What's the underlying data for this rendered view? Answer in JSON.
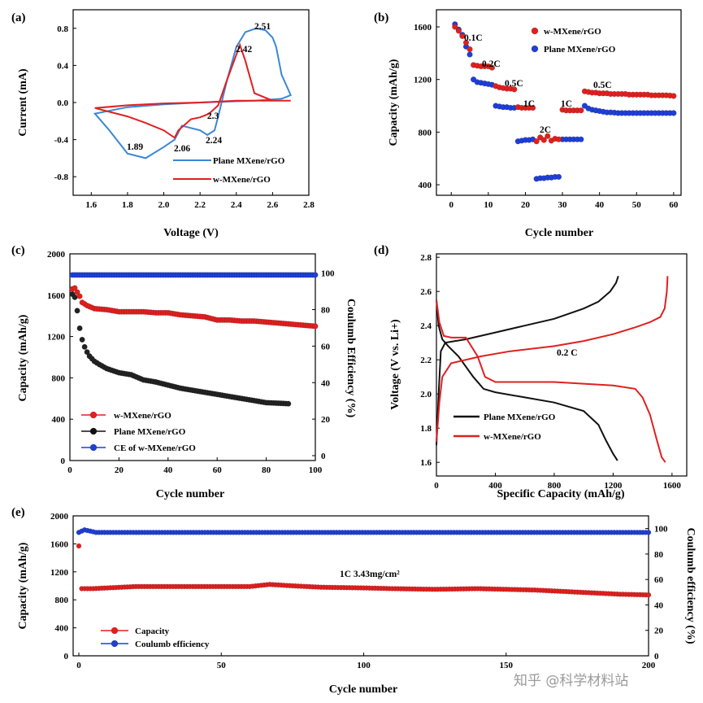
{
  "colors": {
    "red": "#e02020",
    "blue": "#1f3fd6",
    "lineblue": "#3a86d8",
    "black": "#111111"
  },
  "watermark": "知乎 @科学材料站",
  "chart_data": [
    {
      "panel": "(a)",
      "type": "line",
      "xlabel": "Voltage (V)",
      "ylabel": "Current (mA)",
      "xlim": [
        1.5,
        2.8
      ],
      "ylim": [
        -1.0,
        1.0
      ],
      "xticks": [
        "1.6",
        "1.8",
        "2.0",
        "2.2",
        "2.4",
        "2.6",
        "2.8"
      ],
      "yticks": [
        "-0.8",
        "-0.4",
        "0.0",
        "0.4",
        "0.8"
      ],
      "series": [
        {
          "name": "Plane MXene/rGO",
          "color": "#3a86d8",
          "x": [
            1.62,
            1.7,
            1.8,
            1.9,
            2.0,
            2.06,
            2.1,
            2.2,
            2.24,
            2.28,
            2.3,
            2.35,
            2.4,
            2.45,
            2.51,
            2.56,
            2.6,
            2.62,
            2.65,
            2.7,
            2.65,
            2.5,
            2.35,
            2.2,
            2.0,
            1.8,
            1.62
          ],
          "y": [
            -0.12,
            -0.3,
            -0.55,
            -0.6,
            -0.48,
            -0.4,
            -0.25,
            -0.3,
            -0.35,
            -0.3,
            -0.15,
            0.25,
            0.6,
            0.76,
            0.8,
            0.78,
            0.7,
            0.6,
            0.3,
            0.08,
            0.04,
            0.02,
            0.01,
            0.0,
            -0.02,
            -0.05,
            -0.12
          ]
        },
        {
          "name": "w-MXene/rGO",
          "color": "#e02020",
          "x": [
            1.62,
            1.8,
            1.9,
            2.0,
            2.06,
            2.08,
            2.15,
            2.2,
            2.25,
            2.3,
            2.35,
            2.42,
            2.45,
            2.5,
            2.6,
            2.7,
            2.6,
            2.4,
            2.2,
            2.0,
            1.8,
            1.62
          ],
          "y": [
            -0.06,
            -0.15,
            -0.22,
            -0.3,
            -0.38,
            -0.3,
            -0.18,
            -0.16,
            -0.12,
            -0.03,
            0.25,
            0.62,
            0.45,
            0.1,
            0.02,
            0.02,
            0.02,
            0.02,
            0.0,
            -0.01,
            -0.03,
            -0.06
          ]
        }
      ],
      "annotations": [
        "2.51",
        "2.42",
        "2.3",
        "1.89",
        "2.06",
        "2.24"
      ]
    },
    {
      "panel": "(b)",
      "type": "scatter",
      "xlabel": "Cycle number",
      "ylabel": "Capacity (mAh/g)",
      "xlim": [
        -4,
        62
      ],
      "ylim": [
        320,
        1730
      ],
      "xticks": [
        "0",
        "10",
        "20",
        "30",
        "40",
        "50",
        "60"
      ],
      "yticks": [
        "400",
        "800",
        "1200",
        "1600"
      ],
      "legend": [
        "w-MXene/rGO",
        "Plane MXene/rGO"
      ],
      "rates": [
        "0.1C",
        "0.2C",
        "0.5C",
        "1C",
        "2C",
        "1C",
        "0.5C"
      ],
      "red": [
        1600,
        1570,
        1530,
        1480,
        1430,
        1310,
        1305,
        1300,
        1300,
        1300,
        1290,
        1150,
        1140,
        1135,
        1130,
        1130,
        1125,
        990,
        985,
        985,
        985,
        985,
        730,
        760,
        740,
        770,
        735,
        750,
        745,
        970,
        965,
        965,
        965,
        965,
        965,
        1110,
        1105,
        1100,
        1100,
        1095,
        1095,
        1095,
        1090,
        1090,
        1090,
        1090,
        1090,
        1085,
        1085,
        1085,
        1085,
        1085,
        1085,
        1080,
        1080,
        1080,
        1080,
        1080,
        1078,
        1075
      ],
      "blue": [
        1620,
        1580,
        1540,
        1450,
        1390,
        1200,
        1180,
        1175,
        1170,
        1165,
        1160,
        1000,
        995,
        990,
        990,
        985,
        985,
        730,
        735,
        740,
        740,
        745,
        445,
        450,
        450,
        455,
        455,
        460,
        460,
        745,
        745,
        745,
        745,
        745,
        745,
        1000,
        980,
        970,
        965,
        960,
        955,
        950,
        950,
        948,
        945,
        945,
        945,
        945,
        945,
        945,
        945,
        945,
        945,
        945,
        945,
        945,
        945,
        945,
        945,
        945
      ]
    },
    {
      "panel": "(c)",
      "type": "scatter",
      "xlabel": "Cycle number",
      "ylabel": "Capacity (mAh/g)",
      "y2label": "Coulumb Efficiency (%)",
      "xlim": [
        0,
        100
      ],
      "ylim": [
        0,
        2000
      ],
      "y2lim": [
        0,
        115
      ],
      "xticks": [
        "0",
        "20",
        "40",
        "60",
        "80",
        "100"
      ],
      "yticks": [
        "0",
        "400",
        "800",
        "1200",
        "1600",
        "2000"
      ],
      "y2ticks": [
        "0",
        "20",
        "40",
        "60",
        "80",
        "100"
      ],
      "legend": [
        "w-MXene/rGO",
        "Plane MXene/rGO",
        "CE of w-MXene/rGO"
      ],
      "red_cap": {
        "x": [
          1,
          2,
          3,
          4,
          5,
          7,
          10,
          15,
          20,
          25,
          30,
          35,
          40,
          45,
          50,
          55,
          60,
          65,
          70,
          75,
          80,
          85,
          90,
          95,
          100
        ],
        "y": [
          1660,
          1670,
          1630,
          1590,
          1530,
          1500,
          1470,
          1460,
          1440,
          1440,
          1440,
          1430,
          1430,
          1410,
          1400,
          1390,
          1360,
          1360,
          1350,
          1350,
          1340,
          1330,
          1320,
          1310,
          1300
        ]
      },
      "black_cap": {
        "x": [
          1,
          2,
          3,
          4,
          5,
          6,
          7,
          8,
          10,
          12,
          15,
          20,
          25,
          30,
          35,
          40,
          45,
          50,
          55,
          60,
          65,
          70,
          75,
          80,
          85,
          89
        ],
        "y": [
          1610,
          1580,
          1450,
          1280,
          1170,
          1100,
          1050,
          1010,
          960,
          930,
          890,
          850,
          830,
          780,
          760,
          730,
          700,
          680,
          660,
          640,
          620,
          600,
          580,
          560,
          555,
          550
        ]
      },
      "ce": {
        "x": [
          1,
          10,
          20,
          30,
          40,
          50,
          60,
          70,
          80,
          90,
          100
        ],
        "y": [
          99,
          99,
          99,
          99,
          99,
          99,
          99,
          99,
          99,
          99,
          99
        ]
      }
    },
    {
      "panel": "(d)",
      "type": "line",
      "xlabel": "Specific Capacity (mAh/g)",
      "ylabel": "Voltage (V vs. Li+)",
      "xlim": [
        0,
        1700
      ],
      "ylim": [
        1.52,
        2.82
      ],
      "xticks": [
        "0",
        "400",
        "800",
        "1200",
        "1600"
      ],
      "yticks": [
        "1.6",
        "1.8",
        "2.0",
        "2.2",
        "2.4",
        "2.6",
        "2.8"
      ],
      "annotation": "0.2 C",
      "series": [
        {
          "name": "Plane MXene/rGO",
          "color": "#111111",
          "discharge": {
            "x": [
              0,
              15,
              40,
              80,
              150,
              250,
              320,
              400,
              600,
              800,
              1000,
              1100,
              1150,
              1200,
              1230
            ],
            "y": [
              2.55,
              2.4,
              2.32,
              2.28,
              2.22,
              2.1,
              2.03,
              2.01,
              1.98,
              1.95,
              1.9,
              1.82,
              1.73,
              1.65,
              1.61
            ]
          },
          "charge": {
            "x": [
              0,
              15,
              30,
              60,
              200,
              400,
              600,
              800,
              1000,
              1100,
              1180,
              1220,
              1235
            ],
            "y": [
              1.7,
              2.0,
              2.25,
              2.3,
              2.32,
              2.36,
              2.4,
              2.44,
              2.5,
              2.54,
              2.6,
              2.65,
              2.69
            ]
          }
        },
        {
          "name": "w-MXene/rGO",
          "color": "#e02020",
          "discharge": {
            "x": [
              0,
              20,
              50,
              100,
              200,
              280,
              330,
              400,
              600,
              800,
              1000,
              1200,
              1350,
              1400,
              1450,
              1500,
              1530,
              1555
            ],
            "y": [
              2.55,
              2.42,
              2.34,
              2.33,
              2.33,
              2.22,
              2.1,
              2.07,
              2.07,
              2.07,
              2.06,
              2.05,
              2.03,
              1.98,
              1.88,
              1.72,
              1.63,
              1.6
            ]
          },
          "charge": {
            "x": [
              0,
              20,
              40,
              100,
              300,
              500,
              800,
              1000,
              1200,
              1350,
              1450,
              1520,
              1550,
              1565,
              1570
            ],
            "y": [
              1.72,
              1.95,
              2.1,
              2.18,
              2.22,
              2.25,
              2.28,
              2.31,
              2.35,
              2.39,
              2.42,
              2.45,
              2.5,
              2.6,
              2.69
            ]
          }
        }
      ]
    },
    {
      "panel": "(e)",
      "type": "scatter",
      "xlabel": "Cycle number",
      "ylabel": "Capacity (mAh/g)",
      "y2label": "Coulumb efficiency (%)",
      "xlim": [
        0,
        200
      ],
      "ylim": [
        0,
        2000
      ],
      "y2lim": [
        0,
        110
      ],
      "xticks": [
        "0",
        "50",
        "100",
        "150",
        "200"
      ],
      "yticks": [
        "0",
        "400",
        "800",
        "1200",
        "1600",
        "2000"
      ],
      "y2ticks": [
        "0",
        "20",
        "40",
        "60",
        "80",
        "100"
      ],
      "annotation": "1C    3.43mg/cm²",
      "legend": [
        "Capacity",
        "Coulumb efficiency"
      ],
      "cap": {
        "x": [
          0,
          1,
          5,
          10,
          20,
          30,
          40,
          50,
          60,
          67,
          75,
          85,
          100,
          110,
          125,
          140,
          150,
          160,
          170,
          180,
          190,
          200
        ],
        "y": [
          1570,
          960,
          960,
          970,
          990,
          990,
          990,
          990,
          990,
          1020,
          1000,
          980,
          970,
          960,
          950,
          960,
          950,
          940,
          920,
          900,
          880,
          870
        ]
      },
      "ce": {
        "x": [
          0,
          2,
          4,
          6,
          10,
          20,
          50,
          100,
          150,
          200
        ],
        "y": [
          97,
          99,
          98,
          97,
          97,
          97,
          97,
          97,
          97,
          97
        ]
      }
    }
  ]
}
